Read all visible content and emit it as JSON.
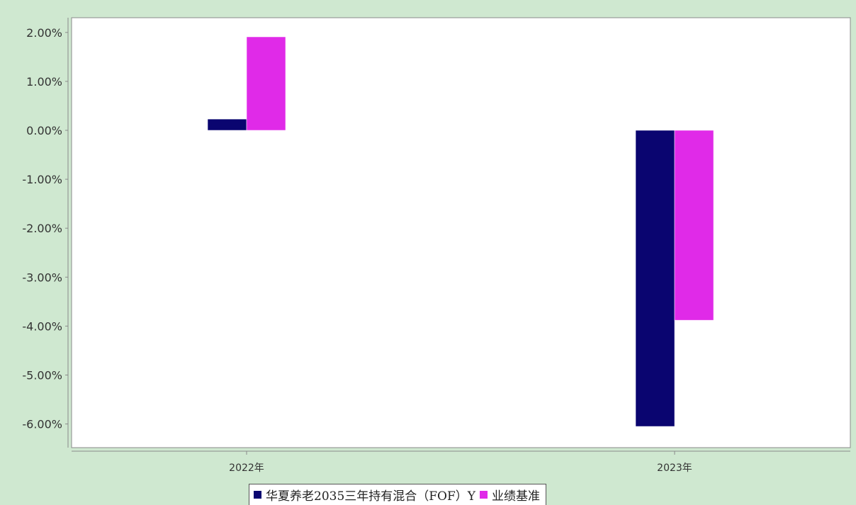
{
  "chart_data": {
    "type": "bar",
    "categories": [
      "2022年",
      "2023年"
    ],
    "series": [
      {
        "name": "华夏养老2035三年持有混合（FOF）Y",
        "color": "#0a0570",
        "values": [
          0.23,
          -6.05
        ]
      },
      {
        "name": "业绩基准",
        "color": "#e02ae8",
        "values": [
          1.91,
          -3.88
        ]
      }
    ],
    "yticks": [
      "2.00%",
      "1.00%",
      "0.00%",
      "-1.00%",
      "-2.00%",
      "-3.00%",
      "-4.00%",
      "-5.00%",
      "-6.00%"
    ],
    "ylim": [
      -6.5,
      2.3
    ],
    "grid": false,
    "legend_position": "bottom",
    "title": "",
    "xlabel": "",
    "ylabel": ""
  },
  "legend": {
    "items": [
      "华夏养老2035三年持有混合（FOF）Y",
      "业绩基准"
    ]
  },
  "colors": {
    "background": "#cfe8d0",
    "plot_area": "#ffffff"
  }
}
